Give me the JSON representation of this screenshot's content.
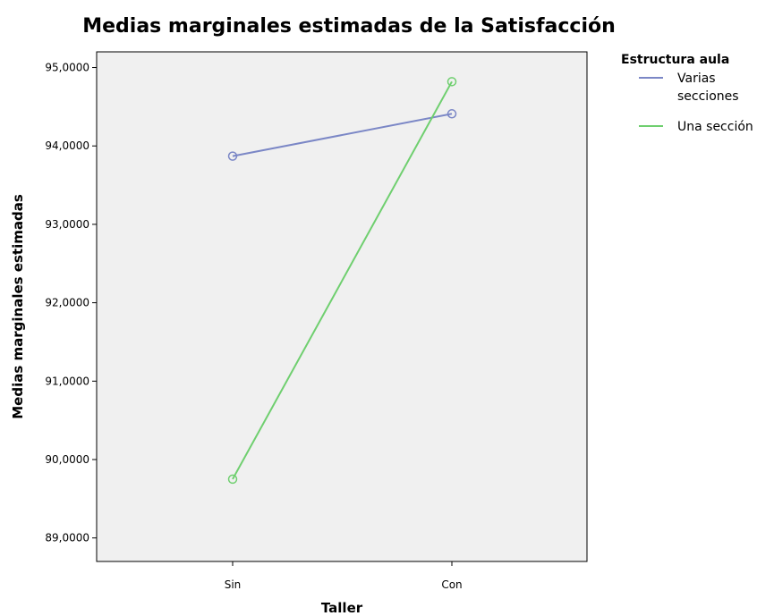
{
  "chart_data": {
    "type": "line",
    "title": "Medias marginales estimadas de la Satisfacción",
    "xlabel": "Taller",
    "ylabel": "Medias marginales estimadas",
    "categories": [
      "Sin",
      "Con"
    ],
    "ylim": [
      88.7,
      95.2
    ],
    "yticks": [
      89,
      90,
      91,
      92,
      93,
      94,
      95
    ],
    "ytick_labels": [
      "89,0000",
      "90,0000",
      "91,0000",
      "92,0000",
      "93,0000",
      "94,0000",
      "95,0000"
    ],
    "grid": false,
    "plot_background": "#f0f0f0",
    "legend": {
      "title": "Estructura aula",
      "position": "right"
    },
    "series": [
      {
        "name": "Varias secciones",
        "name_lines": [
          "Varias",
          "secciones"
        ],
        "color": "#7b87c6",
        "values": [
          93.87,
          94.41
        ]
      },
      {
        "name": "Una sección",
        "name_lines": [
          "Una sección"
        ],
        "color": "#6fcf6f",
        "values": [
          89.75,
          94.82
        ]
      }
    ]
  }
}
